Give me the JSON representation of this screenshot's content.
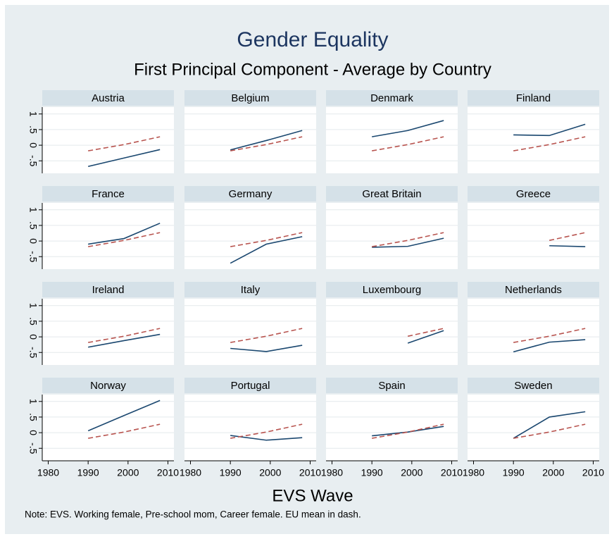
{
  "chart_data": {
    "type": "line",
    "title": "Gender Equality",
    "subtitle": "First Principal Component - Average by Country",
    "xlabel": "EVS Wave",
    "note": "Note: EVS. Working female, Pre-school mom, Career female. EU mean in dash.",
    "x": [
      1990,
      1999,
      2008
    ],
    "xlim": [
      1978.5,
      2011.5
    ],
    "xticks": [
      1980,
      1990,
      2000,
      2010
    ],
    "ylim": [
      -0.9,
      1.22
    ],
    "yticks": [
      {
        "value": -0.5,
        "label": "-.5"
      },
      0,
      {
        "value": 0.5,
        "label": ".5"
      },
      1
    ],
    "grid": true,
    "panels": [
      {
        "title": "Austria",
        "series": [
          {
            "color": "#1a476f",
            "dash": false,
            "values": [
              -0.68,
              -0.41,
              -0.14
            ]
          },
          {
            "color": "#b8544f",
            "dash": true,
            "values": [
              -0.18,
              0.02,
              0.27
            ]
          }
        ]
      },
      {
        "title": "Belgium",
        "series": [
          {
            "color": "#1a476f",
            "dash": false,
            "values": [
              -0.15,
              0.15,
              0.47
            ]
          },
          {
            "color": "#b8544f",
            "dash": true,
            "values": [
              -0.18,
              0.02,
              0.27
            ]
          }
        ]
      },
      {
        "title": "Denmark",
        "series": [
          {
            "color": "#1a476f",
            "dash": false,
            "values": [
              0.27,
              0.47,
              0.79
            ]
          },
          {
            "color": "#b8544f",
            "dash": true,
            "values": [
              -0.18,
              0.02,
              0.27
            ]
          }
        ]
      },
      {
        "title": "Finland",
        "series": [
          {
            "color": "#1a476f",
            "dash": false,
            "values": [
              0.33,
              0.31,
              0.67
            ]
          },
          {
            "color": "#b8544f",
            "dash": true,
            "values": [
              -0.18,
              0.02,
              0.27
            ]
          }
        ]
      },
      {
        "title": "France",
        "series": [
          {
            "color": "#1a476f",
            "dash": false,
            "values": [
              -0.1,
              0.08,
              0.57
            ]
          },
          {
            "color": "#b8544f",
            "dash": true,
            "values": [
              -0.18,
              0.02,
              0.27
            ]
          }
        ]
      },
      {
        "title": "Germany",
        "series": [
          {
            "color": "#1a476f",
            "dash": false,
            "values": [
              -0.71,
              -0.1,
              0.14
            ]
          },
          {
            "color": "#b8544f",
            "dash": true,
            "values": [
              -0.18,
              0.02,
              0.27
            ]
          }
        ]
      },
      {
        "title": "Great Britain",
        "series": [
          {
            "color": "#1a476f",
            "dash": false,
            "values": [
              -0.2,
              -0.17,
              0.09
            ]
          },
          {
            "color": "#b8544f",
            "dash": true,
            "values": [
              -0.18,
              0.02,
              0.27
            ]
          }
        ]
      },
      {
        "title": "Greece",
        "series": [
          {
            "color": "#1a476f",
            "dash": false,
            "values": [
              null,
              -0.15,
              -0.18
            ]
          },
          {
            "color": "#b8544f",
            "dash": true,
            "values": [
              null,
              0.02,
              0.27
            ]
          }
        ]
      },
      {
        "title": "Ireland",
        "series": [
          {
            "color": "#1a476f",
            "dash": false,
            "values": [
              -0.33,
              -0.12,
              0.08
            ]
          },
          {
            "color": "#b8544f",
            "dash": true,
            "values": [
              -0.18,
              0.02,
              0.27
            ]
          }
        ]
      },
      {
        "title": "Italy",
        "series": [
          {
            "color": "#1a476f",
            "dash": false,
            "values": [
              -0.37,
              -0.47,
              -0.27
            ]
          },
          {
            "color": "#b8544f",
            "dash": true,
            "values": [
              -0.18,
              0.02,
              0.27
            ]
          }
        ]
      },
      {
        "title": "Luxembourg",
        "series": [
          {
            "color": "#1a476f",
            "dash": false,
            "values": [
              null,
              -0.2,
              0.2
            ]
          },
          {
            "color": "#b8544f",
            "dash": true,
            "values": [
              null,
              0.02,
              0.27
            ]
          }
        ]
      },
      {
        "title": "Netherlands",
        "series": [
          {
            "color": "#1a476f",
            "dash": false,
            "values": [
              -0.48,
              -0.17,
              -0.09
            ]
          },
          {
            "color": "#b8544f",
            "dash": true,
            "values": [
              -0.18,
              0.02,
              0.27
            ]
          }
        ]
      },
      {
        "title": "Norway",
        "series": [
          {
            "color": "#1a476f",
            "dash": false,
            "values": [
              0.06,
              0.55,
              1.03
            ]
          },
          {
            "color": "#b8544f",
            "dash": true,
            "values": [
              -0.18,
              0.02,
              0.27
            ]
          }
        ]
      },
      {
        "title": "Portugal",
        "series": [
          {
            "color": "#1a476f",
            "dash": false,
            "values": [
              -0.09,
              -0.24,
              -0.16
            ]
          },
          {
            "color": "#b8544f",
            "dash": true,
            "values": [
              -0.18,
              0.02,
              0.27
            ]
          }
        ]
      },
      {
        "title": "Spain",
        "series": [
          {
            "color": "#1a476f",
            "dash": false,
            "values": [
              -0.1,
              0.02,
              0.2
            ]
          },
          {
            "color": "#b8544f",
            "dash": true,
            "values": [
              -0.18,
              0.02,
              0.27
            ]
          }
        ]
      },
      {
        "title": "Sweden",
        "series": [
          {
            "color": "#1a476f",
            "dash": false,
            "values": [
              -0.18,
              0.5,
              0.67
            ]
          },
          {
            "color": "#b8544f",
            "dash": true,
            "values": [
              -0.18,
              0.02,
              0.27
            ]
          }
        ]
      }
    ]
  }
}
